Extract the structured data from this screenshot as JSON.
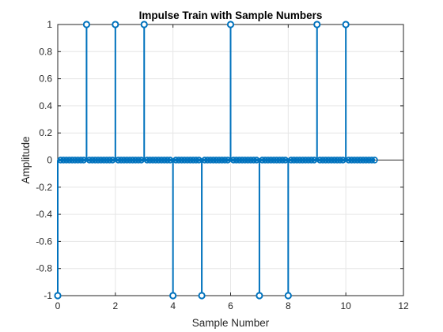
{
  "chart_data": {
    "type": "stem",
    "title": "Impulse Train with Sample Numbers",
    "xlabel": "Sample Number",
    "ylabel": "Amplitude",
    "xlim": [
      0,
      12
    ],
    "ylim": [
      -1,
      1
    ],
    "xticks": [
      "0",
      "2",
      "4",
      "6",
      "8",
      "10",
      "12"
    ],
    "yticks": [
      "-1",
      "-0.8",
      "-0.6",
      "-0.4",
      "-0.2",
      "0",
      "0.2",
      "0.4",
      "0.6",
      "0.8",
      "1"
    ],
    "grid": true,
    "baseline": 0,
    "series_color": "#0072BD",
    "impulses": [
      {
        "x": 0,
        "y": -1
      },
      {
        "x": 1,
        "y": 1
      },
      {
        "x": 2,
        "y": 1
      },
      {
        "x": 3,
        "y": 1
      },
      {
        "x": 4,
        "y": -1
      },
      {
        "x": 5,
        "y": -1
      },
      {
        "x": 6,
        "y": 1
      },
      {
        "x": 7,
        "y": -1
      },
      {
        "x": 8,
        "y": -1
      },
      {
        "x": 9,
        "y": 1
      },
      {
        "x": 10,
        "y": 1
      }
    ],
    "zero_samples_range": [
      0,
      11
    ],
    "zero_sample_step": 0.1
  }
}
